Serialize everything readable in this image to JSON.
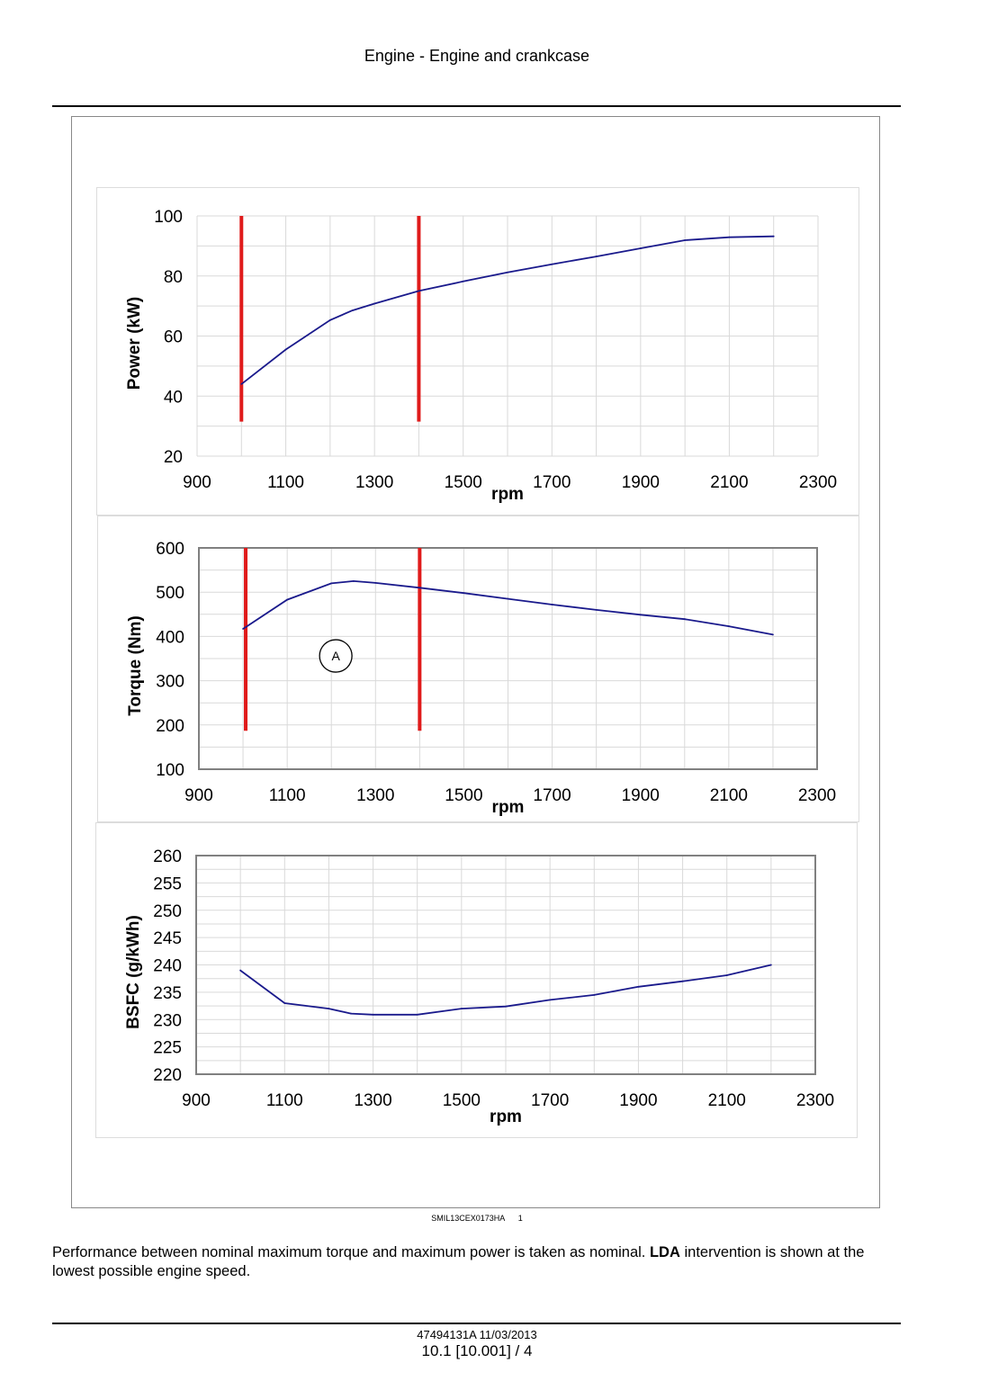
{
  "header": {
    "title": "Engine - Engine and crankcase"
  },
  "figure": {
    "code": "SMIL13CEX0173HA",
    "number": "1"
  },
  "body": {
    "text_before": "Performance between nominal maximum torque and maximum power is taken as nominal. ",
    "bold": "LDA",
    "text_after": " intervention is shown at the lowest possible engine speed."
  },
  "footer": {
    "doc": "47494131A 11/03/2013",
    "page": "10.1 [10.001] / 4"
  },
  "colors": {
    "curve": "#1a1a8c",
    "marker": "#e01b1b",
    "grid": "#d9d9d9"
  },
  "chart_data": [
    {
      "type": "line",
      "title": "",
      "xlabel": "rpm",
      "ylabel": "Power (kW)",
      "xlim": [
        900,
        2300
      ],
      "ylim": [
        20,
        100
      ],
      "xticks": [
        900,
        1100,
        1300,
        1500,
        1700,
        1900,
        2100,
        2300
      ],
      "yticks": [
        20,
        40,
        60,
        80,
        100
      ],
      "x": [
        1000,
        1100,
        1200,
        1250,
        1300,
        1400,
        1500,
        1600,
        1700,
        1800,
        1900,
        2000,
        2100,
        2200
      ],
      "y": [
        44,
        55.5,
        65.3,
        68.5,
        70.8,
        75,
        78.2,
        81.2,
        83.9,
        86.5,
        89.2,
        91.9,
        92.9,
        93.2
      ],
      "vertical_markers": [
        {
          "x": 1000,
          "y_range": [
            31.5,
            100
          ]
        },
        {
          "x": 1400,
          "y_range": [
            31.5,
            100
          ]
        }
      ],
      "grid": true
    },
    {
      "type": "line",
      "title": "",
      "xlabel": "rpm",
      "ylabel": "Torque (Nm)",
      "xlim": [
        900,
        2300
      ],
      "ylim": [
        100,
        600
      ],
      "xticks": [
        900,
        1100,
        1300,
        1500,
        1700,
        1900,
        2100,
        2300
      ],
      "yticks": [
        100,
        200,
        300,
        400,
        500,
        600
      ],
      "x": [
        1000,
        1100,
        1200,
        1250,
        1300,
        1400,
        1500,
        1600,
        1700,
        1800,
        1900,
        2000,
        2100,
        2200
      ],
      "y": [
        417,
        483,
        520,
        525,
        521,
        510,
        498,
        485,
        472,
        460,
        449,
        439,
        423,
        404
      ],
      "vertical_markers": [
        {
          "x": 1006,
          "y_range": [
            187,
            600
          ]
        },
        {
          "x": 1400,
          "y_range": [
            187,
            600
          ]
        }
      ],
      "annotations": [
        {
          "text": "A",
          "x": 1210,
          "y": 356
        }
      ],
      "grid": true
    },
    {
      "type": "line",
      "title": "",
      "xlabel": "rpm",
      "ylabel": "BSFC (g/kWh)",
      "xlim": [
        900,
        2300
      ],
      "ylim": [
        220,
        260
      ],
      "xticks": [
        900,
        1100,
        1300,
        1500,
        1700,
        1900,
        2100,
        2300
      ],
      "yticks": [
        220,
        225,
        230,
        235,
        240,
        245,
        250,
        255,
        260
      ],
      "x": [
        1000,
        1100,
        1200,
        1250,
        1300,
        1400,
        1500,
        1600,
        1700,
        1800,
        1900,
        2000,
        2100,
        2200
      ],
      "y": [
        239,
        233,
        232,
        231.1,
        230.9,
        230.9,
        232,
        232.4,
        233.6,
        234.5,
        236,
        237,
        238.1,
        240
      ],
      "grid": true
    }
  ]
}
